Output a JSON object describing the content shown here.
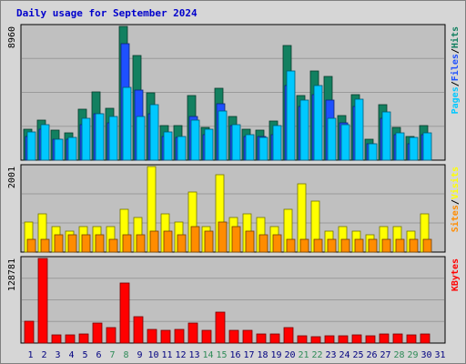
{
  "title": "Daily usage for September 2024",
  "colors": {
    "pages": "#00c8ff",
    "files": "#1e50ff",
    "hits": "#128060",
    "visits": "#ffff00",
    "sites": "#ff8c00",
    "kbytes": "#ff0000",
    "panel_bg": "#c0c0c0",
    "weekend_label": "#2e8b57",
    "weekday_label": "#000080"
  },
  "chart_data": [
    {
      "type": "bar",
      "panel": "hits-files-pages",
      "ylabel_parts": [
        "Pages",
        "Files",
        "Hits"
      ],
      "ymax_label": "8960",
      "ylim": [
        0,
        8960
      ],
      "categories": [
        "1",
        "2",
        "3",
        "4",
        "5",
        "6",
        "7",
        "8",
        "9",
        "10",
        "11",
        "12",
        "13",
        "14",
        "15",
        "16",
        "17",
        "18",
        "19",
        "20",
        "21",
        "22",
        "23",
        "24",
        "25",
        "26",
        "27",
        "28",
        "29",
        "30",
        "31"
      ],
      "series": [
        {
          "name": "Hits",
          "values": [
            2100,
            2700,
            2000,
            1800,
            3400,
            4600,
            3500,
            8960,
            7000,
            4500,
            2300,
            2300,
            4300,
            2200,
            4800,
            2900,
            2100,
            2000,
            2600,
            7700,
            4300,
            6000,
            5600,
            3000,
            4400,
            1400,
            3700,
            2200,
            1600,
            2300,
            0
          ]
        },
        {
          "name": "Files",
          "values": [
            1600,
            2100,
            1400,
            1400,
            2400,
            3100,
            2500,
            7800,
            4700,
            3100,
            1600,
            1500,
            2900,
            1700,
            3800,
            2300,
            1600,
            1600,
            1700,
            5000,
            3600,
            4400,
            4000,
            2500,
            3600,
            1100,
            2800,
            1700,
            1100,
            1700,
            0
          ]
        },
        {
          "name": "Pages",
          "values": [
            1900,
            2400,
            1400,
            1500,
            2800,
            3100,
            2900,
            4900,
            2900,
            3700,
            1900,
            1600,
            2700,
            2100,
            3300,
            2400,
            1700,
            1500,
            2300,
            6000,
            4000,
            5000,
            2800,
            2400,
            4100,
            1100,
            3200,
            1800,
            1500,
            1800,
            0
          ]
        }
      ]
    },
    {
      "type": "bar",
      "panel": "visits-sites",
      "ylabel_parts": [
        "Sites",
        "Visits"
      ],
      "ymax_label": "2001",
      "ylim": [
        0,
        2001
      ],
      "categories": [
        "1",
        "2",
        "3",
        "4",
        "5",
        "6",
        "7",
        "8",
        "9",
        "10",
        "11",
        "12",
        "13",
        "14",
        "15",
        "16",
        "17",
        "18",
        "19",
        "20",
        "21",
        "22",
        "23",
        "24",
        "25",
        "26",
        "27",
        "28",
        "29",
        "30",
        "31"
      ],
      "series": [
        {
          "name": "Visits",
          "values": [
            700,
            900,
            600,
            500,
            600,
            600,
            600,
            1000,
            800,
            2001,
            900,
            700,
            1400,
            600,
            1800,
            800,
            900,
            800,
            600,
            1000,
            1600,
            1200,
            500,
            600,
            500,
            400,
            600,
            600,
            500,
            900,
            0
          ]
        },
        {
          "name": "Sites",
          "values": [
            300,
            300,
            400,
            400,
            400,
            400,
            300,
            400,
            400,
            500,
            500,
            400,
            600,
            500,
            700,
            600,
            500,
            400,
            400,
            300,
            300,
            300,
            300,
            300,
            300,
            300,
            300,
            300,
            300,
            300,
            0
          ]
        }
      ]
    },
    {
      "type": "bar",
      "panel": "kbytes",
      "ylabel_parts": [
        "KBytes"
      ],
      "ymax_label": "128781",
      "ylim": [
        0,
        128781
      ],
      "categories": [
        "1",
        "2",
        "3",
        "4",
        "5",
        "6",
        "7",
        "8",
        "9",
        "10",
        "11",
        "12",
        "13",
        "14",
        "15",
        "16",
        "17",
        "18",
        "19",
        "20",
        "21",
        "22",
        "23",
        "24",
        "25",
        "26",
        "27",
        "28",
        "29",
        "30",
        "31"
      ],
      "series": [
        {
          "name": "KBytes",
          "values": [
            33000,
            128781,
            13000,
            12000,
            14000,
            30000,
            23000,
            92000,
            40000,
            21000,
            20000,
            21000,
            30000,
            19000,
            47000,
            20000,
            19000,
            14000,
            14000,
            23000,
            11000,
            10000,
            11000,
            11000,
            13000,
            11000,
            14000,
            14000,
            13000,
            14000,
            0
          ]
        }
      ]
    }
  ],
  "days": [
    {
      "label": "1",
      "weekend": false
    },
    {
      "label": "2",
      "weekend": false
    },
    {
      "label": "3",
      "weekend": false
    },
    {
      "label": "4",
      "weekend": false
    },
    {
      "label": "5",
      "weekend": false
    },
    {
      "label": "6",
      "weekend": false
    },
    {
      "label": "7",
      "weekend": true
    },
    {
      "label": "8",
      "weekend": true
    },
    {
      "label": "9",
      "weekend": false
    },
    {
      "label": "10",
      "weekend": false
    },
    {
      "label": "11",
      "weekend": false
    },
    {
      "label": "12",
      "weekend": false
    },
    {
      "label": "13",
      "weekend": false
    },
    {
      "label": "14",
      "weekend": true
    },
    {
      "label": "15",
      "weekend": true
    },
    {
      "label": "16",
      "weekend": false
    },
    {
      "label": "17",
      "weekend": false
    },
    {
      "label": "18",
      "weekend": false
    },
    {
      "label": "19",
      "weekend": false
    },
    {
      "label": "20",
      "weekend": false
    },
    {
      "label": "21",
      "weekend": true
    },
    {
      "label": "22",
      "weekend": true
    },
    {
      "label": "23",
      "weekend": false
    },
    {
      "label": "24",
      "weekend": false
    },
    {
      "label": "25",
      "weekend": false
    },
    {
      "label": "26",
      "weekend": false
    },
    {
      "label": "27",
      "weekend": false
    },
    {
      "label": "28",
      "weekend": true
    },
    {
      "label": "29",
      "weekend": true
    },
    {
      "label": "30",
      "weekend": false
    },
    {
      "label": "31",
      "weekend": false
    }
  ]
}
